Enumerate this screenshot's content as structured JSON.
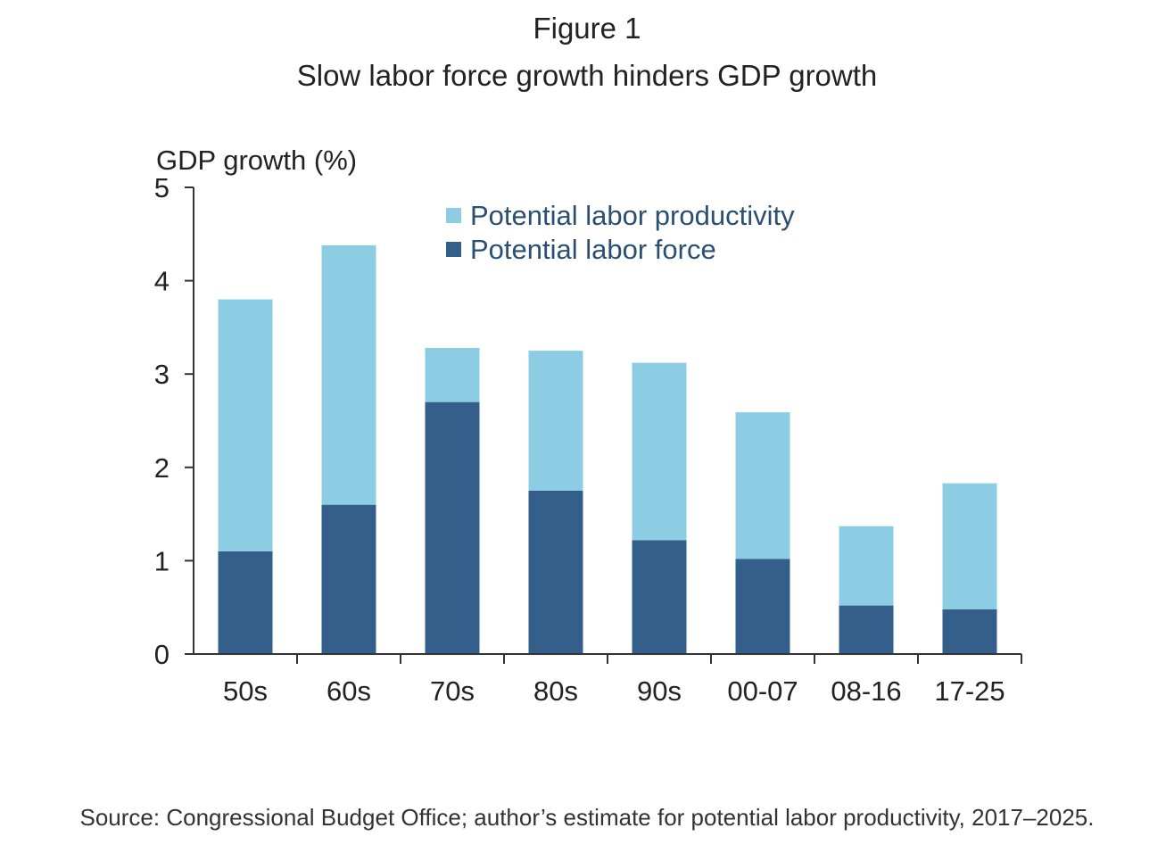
{
  "figure": {
    "label": "Figure 1",
    "title": "Slow labor force growth hinders GDP growth",
    "source": "Source: Congressional Budget Office; author’s estimate for potential labor productivity, 2017–2025."
  },
  "colors": {
    "productivity": "#8dcde3",
    "labor_force": "#335f8a",
    "axis": "#333333",
    "text": "#222222"
  },
  "chart_data": {
    "type": "bar",
    "stacked": true,
    "title": "Slow labor force growth hinders GDP growth",
    "xlabel": "",
    "ylabel": "GDP growth (%)",
    "ylim": [
      0,
      5
    ],
    "yticks": [
      "0",
      "1",
      "2",
      "3",
      "4",
      "5"
    ],
    "grid": false,
    "legend_position": "top-center",
    "categories": [
      "50s",
      "60s",
      "70s",
      "80s",
      "90s",
      "00-07",
      "08-16",
      "17-25"
    ],
    "series": [
      {
        "name": "Potential labor force",
        "color_key": "labor_force",
        "values": [
          1.1,
          1.6,
          2.7,
          1.75,
          1.22,
          1.02,
          0.52,
          0.48
        ]
      },
      {
        "name": "Potential labor productivity",
        "color_key": "productivity",
        "values": [
          2.7,
          2.78,
          0.58,
          1.5,
          1.9,
          1.57,
          0.85,
          1.35
        ]
      }
    ],
    "totals": [
      3.8,
      4.38,
      3.28,
      3.25,
      3.12,
      2.59,
      1.37,
      1.83
    ],
    "legend": [
      "Potential labor productivity",
      "Potential labor force"
    ]
  }
}
